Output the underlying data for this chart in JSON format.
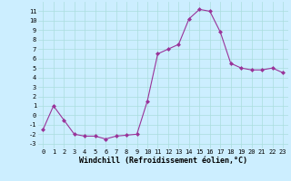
{
  "x": [
    0,
    1,
    2,
    3,
    4,
    5,
    6,
    7,
    8,
    9,
    10,
    11,
    12,
    13,
    14,
    15,
    16,
    17,
    18,
    19,
    20,
    21,
    22,
    23
  ],
  "y": [
    -1.5,
    1.0,
    -0.5,
    -2.0,
    -2.2,
    -2.2,
    -2.5,
    -2.2,
    -2.1,
    -2.0,
    1.5,
    6.5,
    7.0,
    7.5,
    10.2,
    11.2,
    11.0,
    8.8,
    5.5,
    5.0,
    4.8,
    4.8,
    5.0,
    4.5
  ],
  "xlim": [
    -0.5,
    23.5
  ],
  "ylim": [
    -3.5,
    12
  ],
  "yticks": [
    -3,
    -2,
    -1,
    0,
    1,
    2,
    3,
    4,
    5,
    6,
    7,
    8,
    9,
    10,
    11
  ],
  "xticks": [
    0,
    1,
    2,
    3,
    4,
    5,
    6,
    7,
    8,
    9,
    10,
    11,
    12,
    13,
    14,
    15,
    16,
    17,
    18,
    19,
    20,
    21,
    22,
    23
  ],
  "xlabel": "Windchill (Refroidissement éolien,°C)",
  "line_color": "#993399",
  "marker": "D",
  "marker_size": 2,
  "bg_color": "#cceeff",
  "grid_color": "#aadddd",
  "axis_fontsize": 5.5,
  "tick_fontsize": 5.0,
  "xlabel_fontsize": 6.0
}
